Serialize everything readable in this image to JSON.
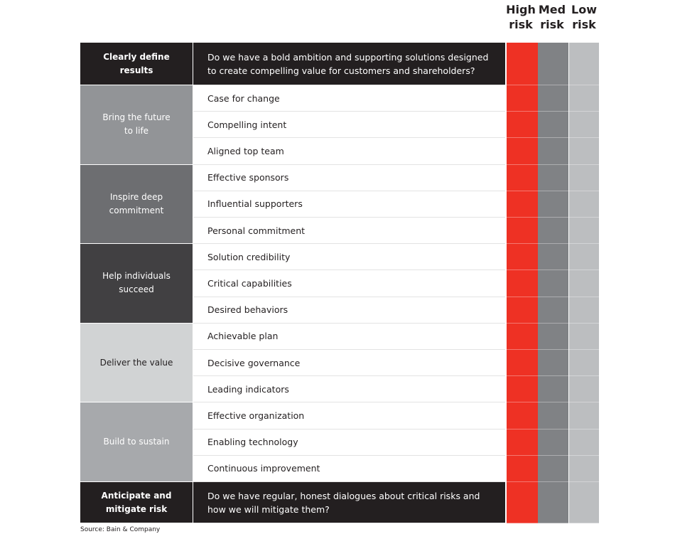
{
  "risk_headers": [
    "High risk",
    "Med risk",
    "Low risk"
  ],
  "colors": {
    "high": "#ee3124",
    "med": "#808285",
    "low": "#bcbec0",
    "dark": "#231f20"
  },
  "top": {
    "label": "Clearly define results",
    "question": "Do we have a bold ambition and supporting solutions designed to create compelling value for customers and shareholders?"
  },
  "groups": [
    {
      "label": "Bring the future to life",
      "color": "#929497",
      "items": [
        "Case for change",
        "Compelling intent",
        "Aligned top team"
      ]
    },
    {
      "label": "Inspire deep commitment",
      "color": "#6d6e71",
      "items": [
        "Effective sponsors",
        "Influential supporters",
        "Personal commitment"
      ]
    },
    {
      "label": "Help individuals succeed",
      "color": "#414042",
      "items": [
        "Solution credibility",
        "Critical capabilities",
        "Desired behaviors"
      ]
    },
    {
      "label": "Deliver the value",
      "color": "#d1d3d4",
      "text_color": "#231f20",
      "items": [
        "Achievable plan",
        "Decisive governance",
        "Leading indicators"
      ]
    },
    {
      "label": "Build to sustain",
      "color": "#a7a9ac",
      "items": [
        "Effective organization",
        "Enabling technology",
        "Continuous improvement"
      ]
    }
  ],
  "bottom": {
    "label": "Anticipate and mitigate risk",
    "question": "Do we have regular, honest dialogues about critical risks and how we will mitigate them?"
  },
  "source": "Source: Bain & Company"
}
